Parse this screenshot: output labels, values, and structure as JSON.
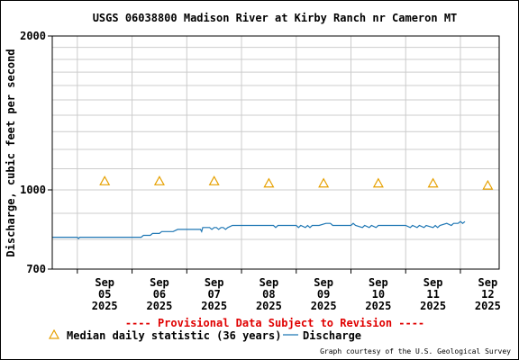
{
  "chart_data": {
    "type": "line",
    "title": "USGS 06038800 Madison River at Kirby Ranch nr Cameron MT",
    "ylabel": "Discharge, cubic feet per second",
    "xlabel": "",
    "y_scale": "log",
    "ylim": [
      700,
      2000
    ],
    "y_tick_labels": [
      "2000",
      "1000",
      "700"
    ],
    "y_ticks": [
      2000,
      1000,
      700
    ],
    "y_minor_gridlines": [
      800,
      900,
      1100,
      1200,
      1300,
      1400,
      1500,
      1600,
      1700,
      1800,
      1900
    ],
    "xlim": [
      "2025-09-04 13:00",
      "2025-09-12 17:00"
    ],
    "x_ticks": [
      {
        "date": "2025-09-05",
        "label": [
          "Sep",
          "05",
          "2025"
        ]
      },
      {
        "date": "2025-09-06",
        "label": [
          "Sep",
          "06",
          "2025"
        ]
      },
      {
        "date": "2025-09-07",
        "label": [
          "Sep",
          "07",
          "2025"
        ]
      },
      {
        "date": "2025-09-08",
        "label": [
          "Sep",
          "08",
          "2025"
        ]
      },
      {
        "date": "2025-09-09",
        "label": [
          "Sep",
          "09",
          "2025"
        ]
      },
      {
        "date": "2025-09-10",
        "label": [
          "Sep",
          "10",
          "2025"
        ]
      },
      {
        "date": "2025-09-11",
        "label": [
          "Sep",
          "11",
          "2025"
        ]
      },
      {
        "date": "2025-09-12",
        "label": [
          "Sep",
          "12",
          "2025"
        ]
      }
    ],
    "grid": true,
    "legend_position": "bottom",
    "series": [
      {
        "name": "Discharge",
        "type": "line",
        "color": "#1f77b4",
        "points": [
          [
            "2025-09-04 13:00",
            808
          ],
          [
            "2025-09-05 00:00",
            808
          ],
          [
            "2025-09-05 00:30",
            803
          ],
          [
            "2025-09-05 01:00",
            808
          ],
          [
            "2025-09-06 00:00",
            808
          ],
          [
            "2025-09-06 04:00",
            808
          ],
          [
            "2025-09-06 05:00",
            815
          ],
          [
            "2025-09-06 08:00",
            815
          ],
          [
            "2025-09-06 09:00",
            822
          ],
          [
            "2025-09-06 12:00",
            822
          ],
          [
            "2025-09-06 13:00",
            829
          ],
          [
            "2025-09-06 18:00",
            829
          ],
          [
            "2025-09-06 20:00",
            837
          ],
          [
            "2025-09-07 00:00",
            837
          ],
          [
            "2025-09-07 06:00",
            837
          ],
          [
            "2025-09-07 06:30",
            829
          ],
          [
            "2025-09-07 07:00",
            844
          ],
          [
            "2025-09-07 10:00",
            844
          ],
          [
            "2025-09-07 11:00",
            837
          ],
          [
            "2025-09-07 12:00",
            844
          ],
          [
            "2025-09-07 13:00",
            844
          ],
          [
            "2025-09-07 14:00",
            837
          ],
          [
            "2025-09-07 15:00",
            844
          ],
          [
            "2025-09-07 16:00",
            844
          ],
          [
            "2025-09-07 17:00",
            837
          ],
          [
            "2025-09-07 18:00",
            844
          ],
          [
            "2025-09-07 20:00",
            852
          ],
          [
            "2025-09-08 14:00",
            852
          ],
          [
            "2025-09-08 15:00",
            844
          ],
          [
            "2025-09-08 16:00",
            852
          ],
          [
            "2025-09-09 00:00",
            852
          ],
          [
            "2025-09-09 01:00",
            844
          ],
          [
            "2025-09-09 02:00",
            852
          ],
          [
            "2025-09-09 04:00",
            844
          ],
          [
            "2025-09-09 05:00",
            852
          ],
          [
            "2025-09-09 06:00",
            844
          ],
          [
            "2025-09-09 07:00",
            852
          ],
          [
            "2025-09-09 10:00",
            852
          ],
          [
            "2025-09-09 13:00",
            860
          ],
          [
            "2025-09-09 15:00",
            860
          ],
          [
            "2025-09-09 16:00",
            852
          ],
          [
            "2025-09-10 00:00",
            852
          ],
          [
            "2025-09-10 01:00",
            860
          ],
          [
            "2025-09-10 02:00",
            852
          ],
          [
            "2025-09-10 05:00",
            844
          ],
          [
            "2025-09-10 06:00",
            852
          ],
          [
            "2025-09-10 08:00",
            844
          ],
          [
            "2025-09-10 09:00",
            852
          ],
          [
            "2025-09-10 11:00",
            844
          ],
          [
            "2025-09-10 12:00",
            852
          ],
          [
            "2025-09-11 00:00",
            852
          ],
          [
            "2025-09-11 02:00",
            844
          ],
          [
            "2025-09-11 03:00",
            852
          ],
          [
            "2025-09-11 05:00",
            844
          ],
          [
            "2025-09-11 06:00",
            852
          ],
          [
            "2025-09-11 08:00",
            844
          ],
          [
            "2025-09-11 09:00",
            852
          ],
          [
            "2025-09-11 12:00",
            844
          ],
          [
            "2025-09-11 13:00",
            852
          ],
          [
            "2025-09-11 14:00",
            844
          ],
          [
            "2025-09-11 15:00",
            852
          ],
          [
            "2025-09-11 18:00",
            860
          ],
          [
            "2025-09-11 20:00",
            852
          ],
          [
            "2025-09-11 21:00",
            860
          ],
          [
            "2025-09-11 23:00",
            860
          ],
          [
            "2025-09-12 00:00",
            867
          ],
          [
            "2025-09-12 01:00",
            860
          ],
          [
            "2025-09-12 02:00",
            867
          ]
        ]
      },
      {
        "name": "Median daily statistic (36 years)",
        "type": "marker",
        "marker": "triangle",
        "color": "#e6a000",
        "points": [
          [
            "2025-09-05 12:00",
            1040
          ],
          [
            "2025-09-06 12:00",
            1040
          ],
          [
            "2025-09-07 12:00",
            1040
          ],
          [
            "2025-09-08 12:00",
            1030
          ],
          [
            "2025-09-09 12:00",
            1030
          ],
          [
            "2025-09-10 12:00",
            1030
          ],
          [
            "2025-09-11 12:00",
            1030
          ],
          [
            "2025-09-12 12:00",
            1020
          ]
        ]
      }
    ]
  },
  "footer": {
    "notice": "---- Provisional Data Subject to Revision ----",
    "legend_median": "Median daily statistic (36 years)",
    "legend_discharge": "Discharge",
    "credit": "Graph courtesy of the U.S. Geological Survey"
  }
}
